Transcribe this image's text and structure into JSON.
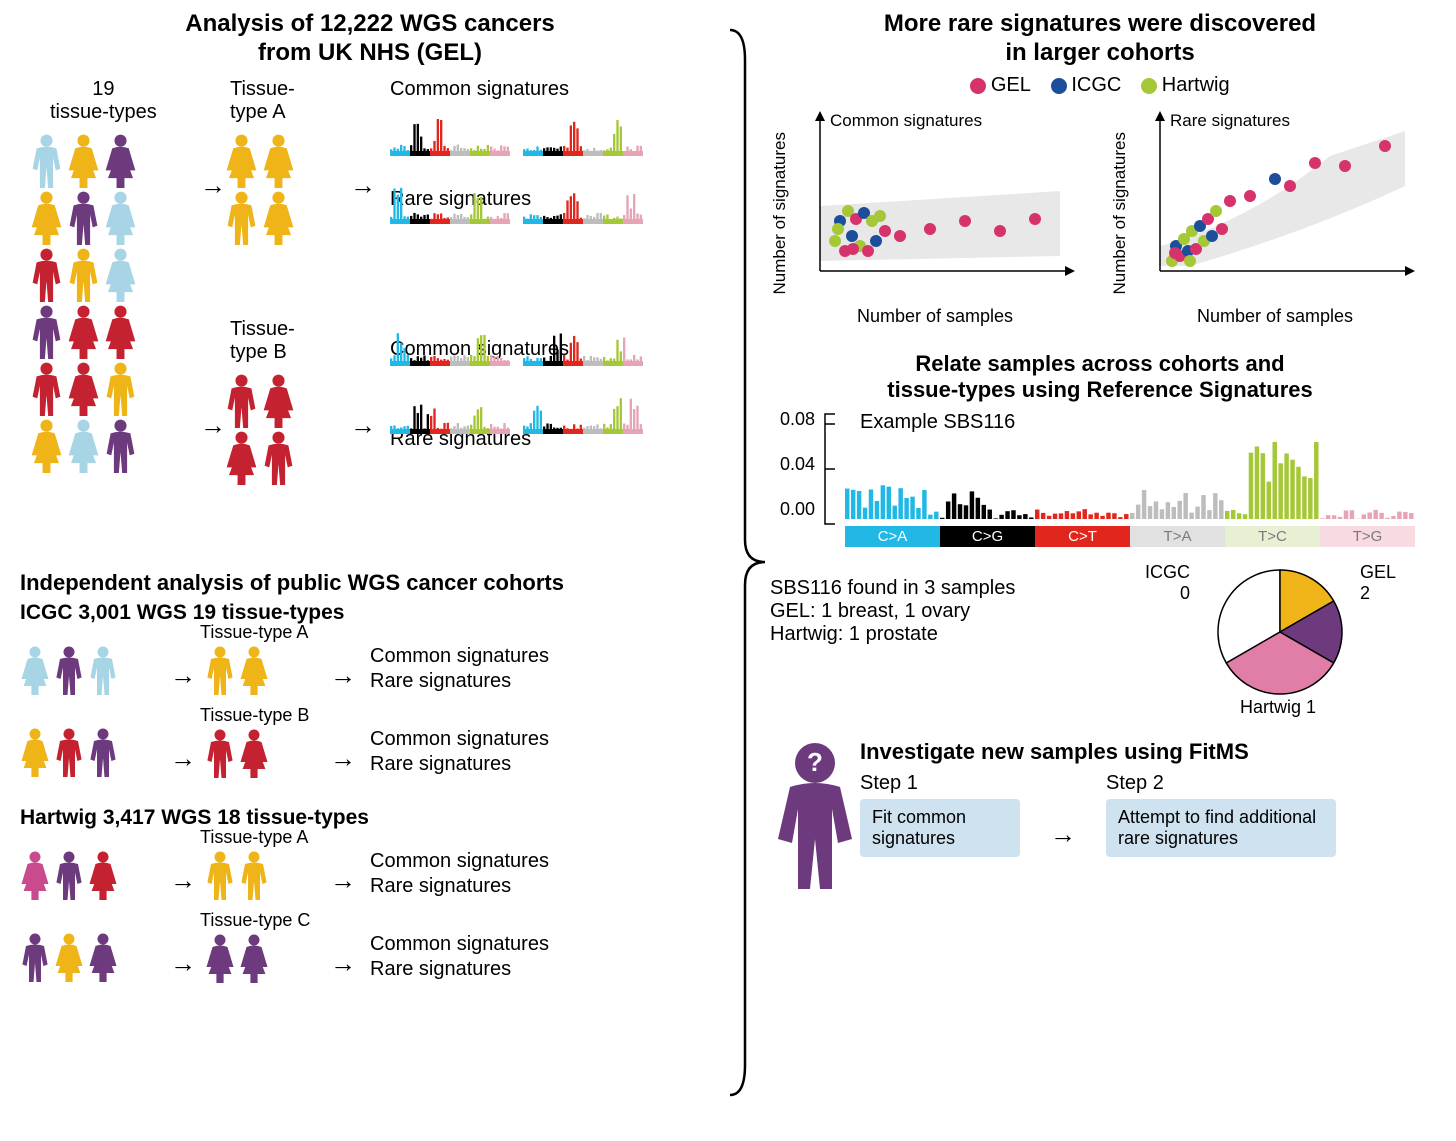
{
  "left": {
    "title_l1": "Analysis of 12,222 WGS cancers",
    "title_l2": "from UK NHS (GEL)",
    "tissue_19": "19\ntissue-types",
    "tissueA": "Tissue-\ntype A",
    "tissueB": "Tissue-\ntype B",
    "common": "Common signatures",
    "rare": "Rare signatures",
    "ind_title": "Independent analysis of public WGS cancer cohorts",
    "icgc": "ICGC 3,001 WGS 19 tissue-types",
    "hartwig": "Hartwig 3,417 WGS 18 tissue-types",
    "ttA": "Tissue-type A",
    "ttB": "Tissue-type B",
    "ttC": "Tissue-type C"
  },
  "right": {
    "title_l1": "More rare signatures were discovered",
    "title_l2": "in larger cohorts",
    "legend": [
      {
        "label": "GEL",
        "color": "#d6336c"
      },
      {
        "label": "ICGC",
        "color": "#1c4e9c"
      },
      {
        "label": "Hartwig",
        "color": "#a5c837"
      }
    ],
    "chart_common": "Common signatures",
    "chart_rare": "Rare signatures",
    "ylabel": "Number of signatures",
    "xlabel": "Number of samples",
    "rel_title_l1": "Relate samples across cohorts and",
    "rel_title_l2": "tissue-types using Reference Signatures",
    "example": "Example SBS116",
    "sbs_yticks": [
      "0.08",
      "0.04",
      "0.00"
    ],
    "mut_types": [
      {
        "label": "C>A",
        "bg": "#22b8e6",
        "fg": "#ffffff"
      },
      {
        "label": "C>G",
        "bg": "#000000",
        "fg": "#ffffff"
      },
      {
        "label": "C>T",
        "bg": "#e1261d",
        "fg": "#ffffff"
      },
      {
        "label": "T>A",
        "bg": "#e1e1e1",
        "fg": "#7a7a7a"
      },
      {
        "label": "T>C",
        "bg": "#e8f0d4",
        "fg": "#7a7a7a"
      },
      {
        "label": "T>G",
        "bg": "#f7dbe0",
        "fg": "#7a7a7a"
      }
    ],
    "sbs_found": "SBS116 found in 3 samples",
    "sbs_gel": "GEL: 1 breast, 1 ovary",
    "sbs_hartwig": "Hartwig: 1 prostate",
    "pie": {
      "icgc": {
        "label": "ICGC\n0",
        "color": "#ffffff"
      },
      "gel": {
        "label": "GEL\n2",
        "color_a": "#efb518",
        "color_b": "#6e3a7e"
      },
      "hartwig": {
        "label": "Hartwig 1",
        "color": "#e07ea8"
      }
    },
    "fitms_title": "Investigate new samples using FitMS",
    "step1": "Step 1",
    "step2": "Step 2",
    "step1_box": "Fit common\nsignatures",
    "step2_box": "Attempt to find additional\nrare signatures"
  },
  "person_colors": {
    "blue": "#a8d5e5",
    "yellow": "#efb518",
    "purple": "#6e3a7e",
    "red": "#c42230",
    "magenta": "#c94b8e"
  },
  "sig_colors": {
    "cyan": "#22b8e6",
    "black": "#000000",
    "red": "#e1261d",
    "grey": "#bdbdbd",
    "green": "#a5c837",
    "pink": "#e6a4b4"
  }
}
